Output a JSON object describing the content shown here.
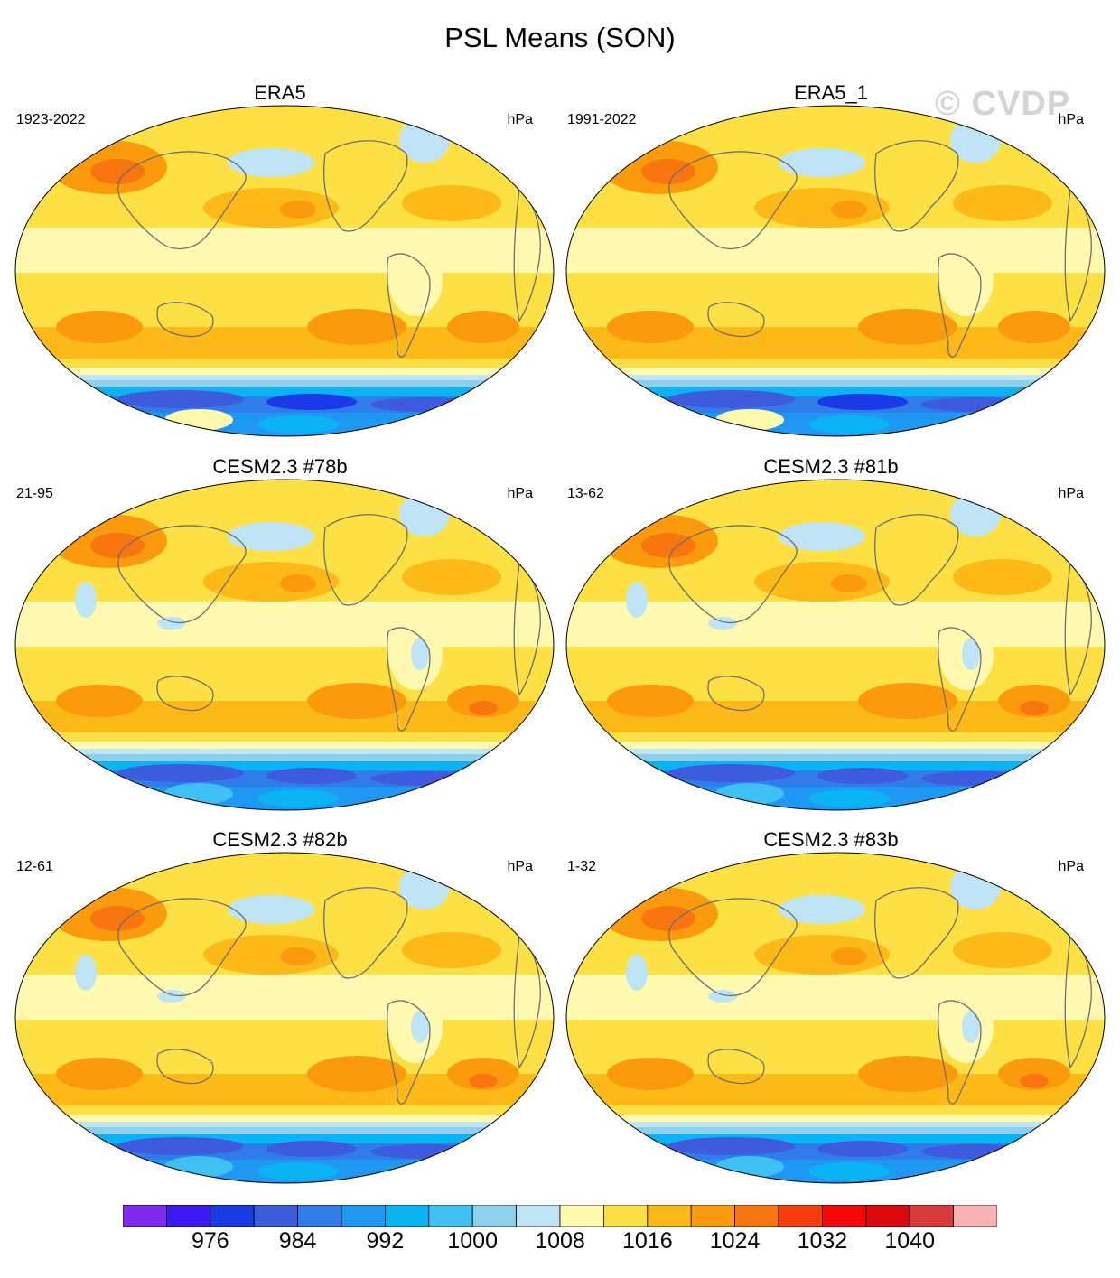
{
  "title": "PSL Means (SON)",
  "watermark": "© CVDP",
  "panels": [
    {
      "title": "ERA5",
      "period": "1923-2022",
      "units": "hPa"
    },
    {
      "title": "ERA5_1",
      "period": "1991-2022",
      "units": "hPa"
    },
    {
      "title": "CESM2.3 #78b",
      "period": "21-95",
      "units": "hPa"
    },
    {
      "title": "CESM2.3 #81b",
      "period": "13-62",
      "units": "hPa"
    },
    {
      "title": "CESM2.3 #82b",
      "period": "12-61",
      "units": "hPa"
    },
    {
      "title": "CESM2.3 #83b",
      "period": "1-32",
      "units": "hPa"
    }
  ],
  "colorbar": {
    "colors": [
      "#7d2aee",
      "#3a19f3",
      "#1a3ae8",
      "#3d5bdc",
      "#2f7cea",
      "#1e98f3",
      "#0ab3f4",
      "#3fc0f2",
      "#8dd0ee",
      "#bee4f5",
      "#fffab0",
      "#fde043",
      "#fdb918",
      "#fb9a0c",
      "#f97510",
      "#f83c0c",
      "#f70808",
      "#d8080c",
      "#db3a3c",
      "#f8b2b2"
    ],
    "labels": [
      "976",
      "984",
      "992",
      "1000",
      "1008",
      "1016",
      "1024",
      "1032",
      "1040"
    ]
  }
}
